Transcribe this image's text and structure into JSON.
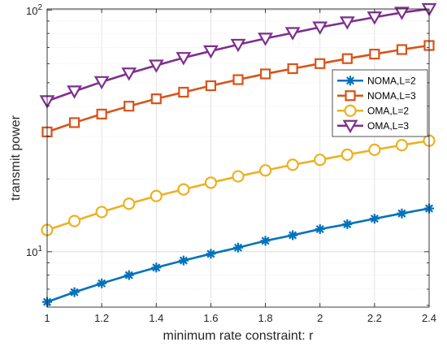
{
  "chart_data": {
    "type": "line",
    "title": "",
    "xlabel": "minimum rate constraint: r",
    "ylabel": "transmit power",
    "xlim": [
      1,
      2.4
    ],
    "ylim": [
      5.9,
      101
    ],
    "yscale": "log",
    "grid": true,
    "legend_position": "upper-right",
    "x_ticks": [
      "1",
      "1.2",
      "1.4",
      "1.6",
      "1.8",
      "2",
      "2.2",
      "2.4"
    ],
    "y_ticks": [
      {
        "value": 10,
        "base": "10",
        "exp": "1"
      },
      {
        "value": 100,
        "base": "10",
        "exp": "2"
      }
    ],
    "x": [
      1,
      1.1,
      1.2,
      1.3,
      1.4,
      1.5,
      1.6,
      1.7,
      1.8,
      1.9,
      2,
      2.1,
      2.2,
      2.3,
      2.4
    ],
    "series": [
      {
        "name": "NOMA,L=2",
        "color": "#0072BD",
        "marker": "asterisk",
        "values": [
          6.2,
          6.8,
          7.4,
          8.0,
          8.6,
          9.2,
          9.8,
          10.4,
          11.1,
          11.7,
          12.4,
          13.0,
          13.7,
          14.4,
          15.1
        ]
      },
      {
        "name": "NOMA,L=3",
        "color": "#D95319",
        "marker": "square",
        "values": [
          31.3,
          34.2,
          37.1,
          40.0,
          42.9,
          45.7,
          48.6,
          51.5,
          54.4,
          57.2,
          60.0,
          62.9,
          65.7,
          68.6,
          71.3
        ]
      },
      {
        "name": "OMA,L=2",
        "color": "#EDB120",
        "marker": "circle",
        "values": [
          12.3,
          13.4,
          14.6,
          15.8,
          17.0,
          18.1,
          19.3,
          20.5,
          21.7,
          22.9,
          24.0,
          25.2,
          26.4,
          27.6,
          28.8
        ]
      },
      {
        "name": "OMA,L=3",
        "color": "#7E2F8E",
        "marker": "triangle-down",
        "values": [
          42.0,
          46.1,
          50.4,
          54.7,
          59.0,
          63.4,
          67.6,
          71.9,
          76.2,
          80.4,
          84.8,
          89.0,
          93.3,
          97.6,
          101.0
        ]
      }
    ]
  }
}
